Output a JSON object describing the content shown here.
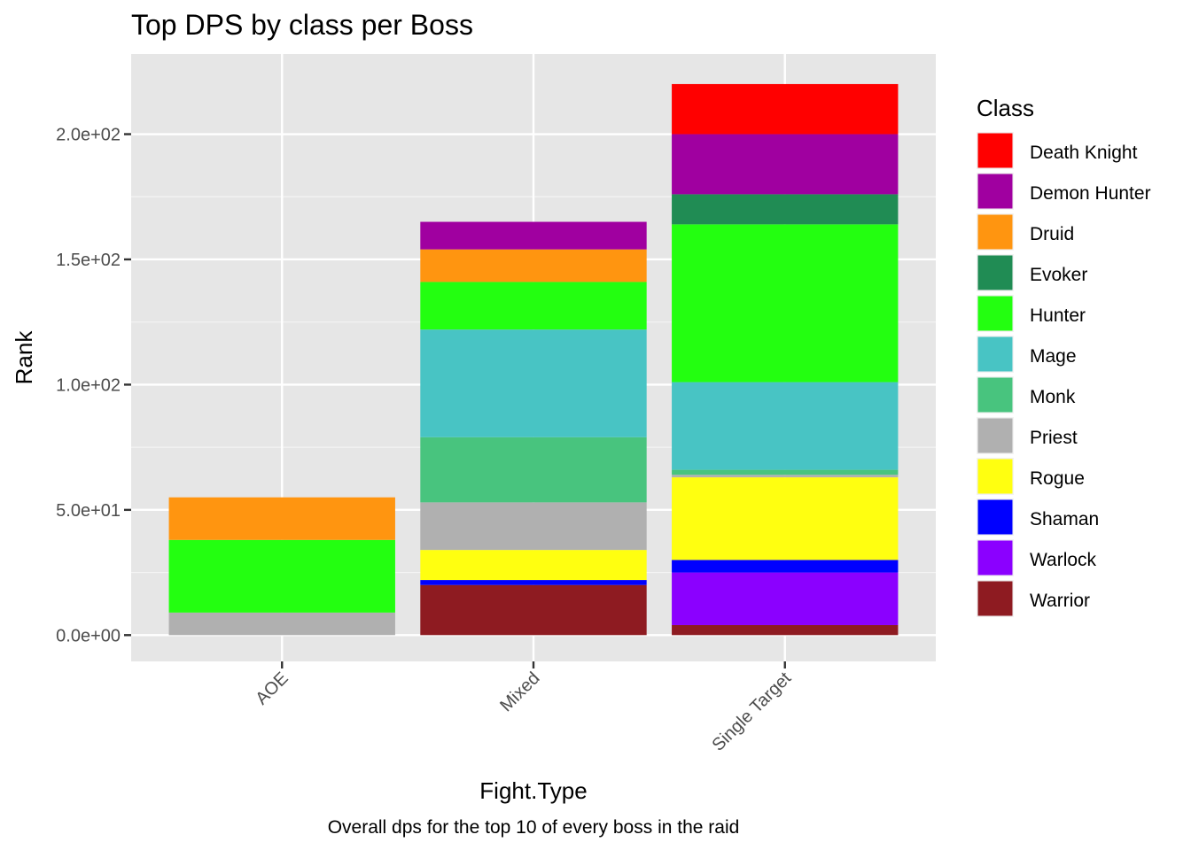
{
  "chart_data": {
    "type": "bar",
    "stacked": true,
    "title": "Top DPS by class per Boss",
    "caption": "Overall dps for the top 10 of every boss in the raid",
    "xlabel": "Fight.Type",
    "ylabel": "Rank",
    "ylim": [
      -10.5,
      232
    ],
    "yticks": [
      0,
      50,
      100,
      150,
      200
    ],
    "ytick_labels": [
      "0.0e+00",
      "5.0e+01",
      "1.0e+02",
      "1.5e+02",
      "2.0e+02"
    ],
    "categories": [
      "AOE",
      "Mixed",
      "Single Target"
    ],
    "legend_title": "Class",
    "legend_position": "right",
    "grid": true,
    "series": [
      {
        "name": "Death Knight",
        "color": "#FF0000",
        "values": [
          0,
          0,
          20
        ]
      },
      {
        "name": "Demon Hunter",
        "color": "#A000A0",
        "values": [
          0,
          11,
          24
        ]
      },
      {
        "name": "Druid",
        "color": "#FF9510",
        "values": [
          17,
          13,
          0
        ]
      },
      {
        "name": "Evoker",
        "color": "#208C54",
        "values": [
          0,
          0,
          12
        ]
      },
      {
        "name": "Hunter",
        "color": "#23FF10",
        "values": [
          29,
          19,
          63
        ]
      },
      {
        "name": "Mage",
        "color": "#48C4C4",
        "values": [
          0,
          43,
          35
        ]
      },
      {
        "name": "Monk",
        "color": "#48C47E",
        "values": [
          0,
          26,
          2
        ]
      },
      {
        "name": "Priest",
        "color": "#B0B0B0",
        "values": [
          9,
          19,
          1
        ]
      },
      {
        "name": "Rogue",
        "color": "#FFFF10",
        "values": [
          0,
          12,
          33
        ]
      },
      {
        "name": "Shaman",
        "color": "#0000FF",
        "values": [
          0,
          2,
          5
        ]
      },
      {
        "name": "Warlock",
        "color": "#8B00FF",
        "values": [
          0,
          0,
          21
        ]
      },
      {
        "name": "Warrior",
        "color": "#8E1B21",
        "values": [
          0,
          20,
          4
        ]
      }
    ]
  }
}
